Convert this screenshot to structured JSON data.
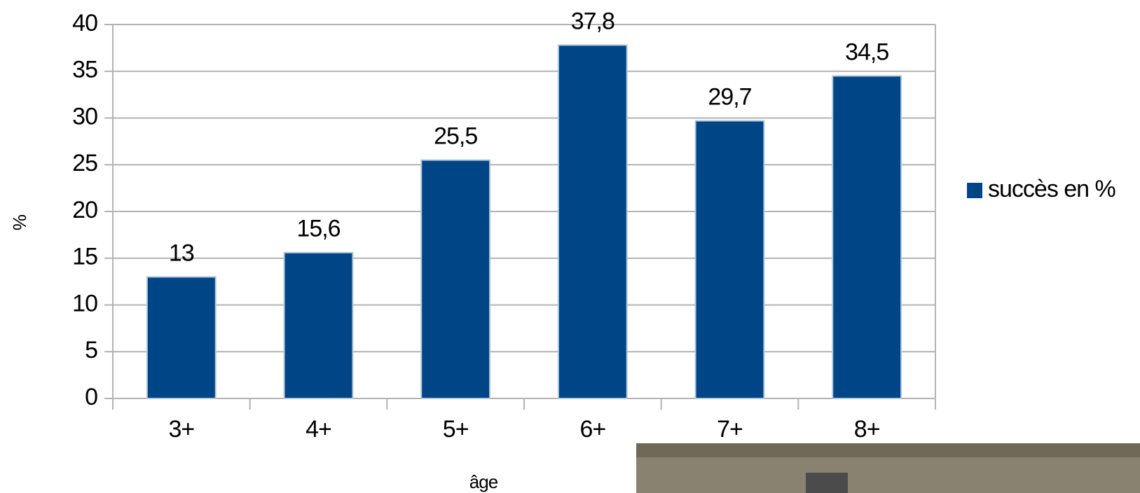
{
  "chart_data": {
    "type": "bar",
    "x_label": "âge",
    "y_label": "%",
    "categories": [
      "3+",
      "4+",
      "5+",
      "6+",
      "7+",
      "8+"
    ],
    "series": [
      {
        "name": "succès en %",
        "color": "#004586",
        "values": [
          13,
          15.6,
          25.5,
          37.8,
          29.7,
          34.5
        ],
        "value_labels": [
          "13",
          "15,6",
          "25,5",
          "37,8",
          "29,7",
          "34,5"
        ]
      }
    ],
    "ylim": [
      0,
      40
    ],
    "yticks": [
      0,
      5,
      10,
      15,
      20,
      25,
      30,
      35,
      40
    ],
    "grid": true,
    "legend": "right"
  }
}
